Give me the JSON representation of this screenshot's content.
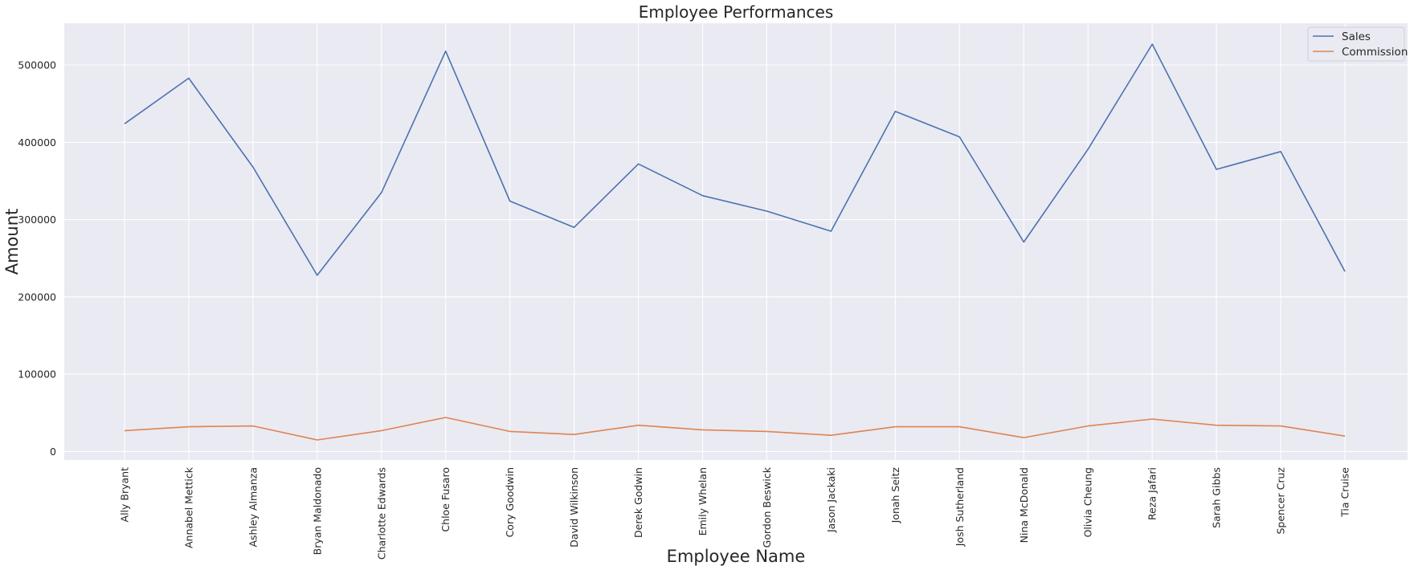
{
  "chart_data": {
    "type": "line",
    "title": "Employee Performances",
    "xlabel": "Employee Name",
    "ylabel": "Amount",
    "categories": [
      "Ally Bryant",
      "Annabel Mettick",
      "Ashley Almanza",
      "Bryan Maldonado",
      "Charlotte Edwards",
      "Chloe Fusaro",
      "Cory Goodwin",
      "David Wilkinson",
      "Derek Godwin",
      "Emily Whelan",
      "Gordon Beswick",
      "Jason Jackaki",
      "Jonah Seitz",
      "Josh Sutherland",
      "Nina McDonald",
      "Olivia Cheung",
      "Reza Jafari",
      "Sarah Gibbs",
      "Spencer Cruz",
      "Tia Cruise"
    ],
    "series": [
      {
        "name": "Sales",
        "color": "#4c72b0",
        "values": [
          424000,
          483000,
          368000,
          228000,
          335000,
          518000,
          324000,
          290000,
          372000,
          331000,
          311000,
          285000,
          440000,
          407000,
          271000,
          391000,
          527000,
          365000,
          388000,
          233000
        ]
      },
      {
        "name": "Commission",
        "color": "#dd8452",
        "values": [
          27000,
          32000,
          33000,
          15000,
          27000,
          44000,
          26000,
          22000,
          34000,
          28000,
          26000,
          21000,
          32000,
          32000,
          18000,
          33000,
          42000,
          34000,
          33000,
          20000
        ]
      }
    ],
    "yticks": [
      0,
      100000,
      200000,
      300000,
      400000,
      500000
    ],
    "ylim": [
      -11000,
      554000
    ],
    "grid": true,
    "legend_position": "top-right",
    "background_color": "#eaeaf2"
  }
}
